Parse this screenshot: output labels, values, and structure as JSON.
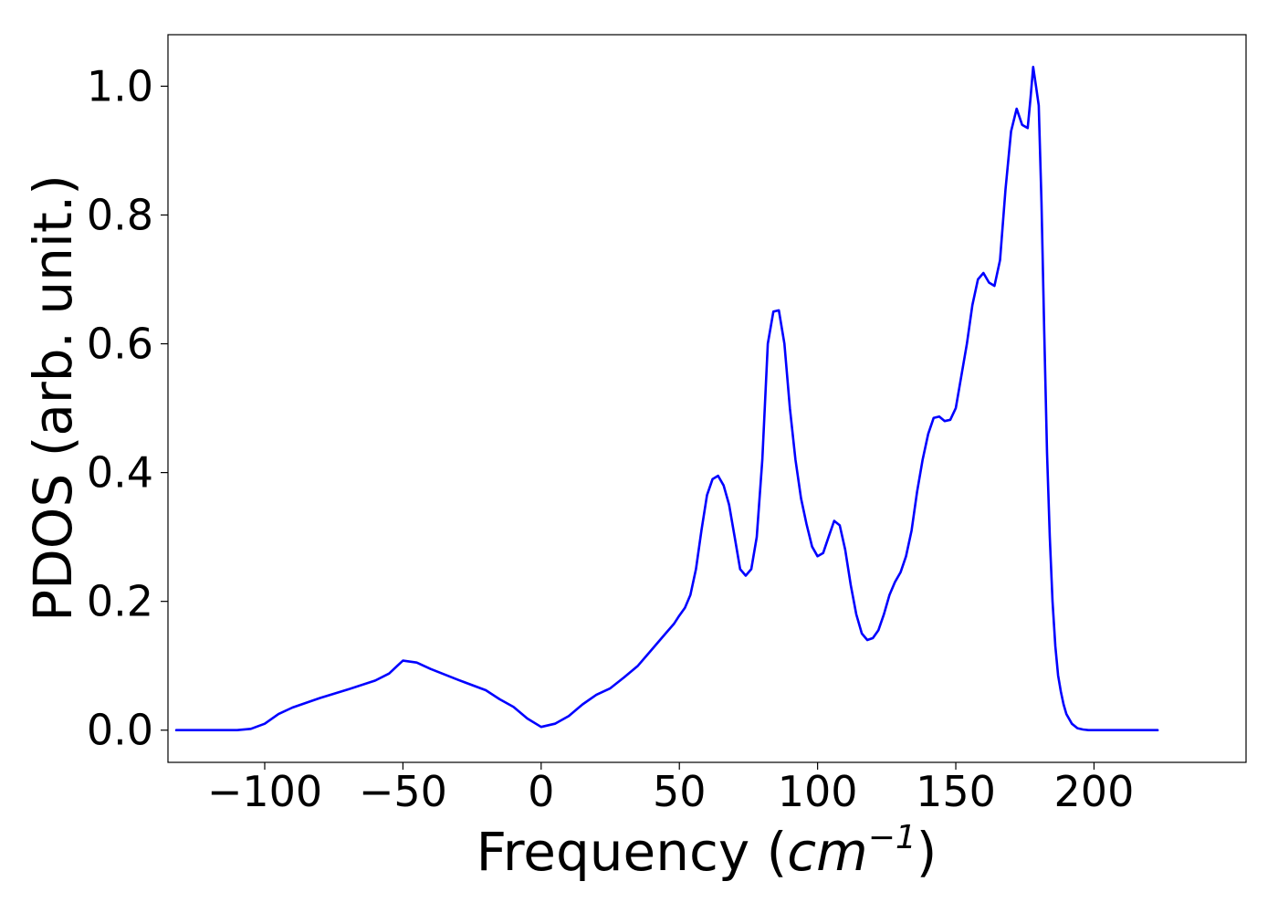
{
  "chart_data": {
    "type": "line",
    "title": "",
    "xlabel": "Frequency",
    "xlabel_unit_base": "cm",
    "xlabel_unit_exp": "−1",
    "ylabel": "PDOS (arb. unit.)",
    "xlim": [
      -135,
      255
    ],
    "ylim": [
      -0.05,
      1.08
    ],
    "xticks": [
      -100,
      -50,
      0,
      50,
      100,
      150,
      200
    ],
    "xtick_labels": [
      "−100",
      "−50",
      "0",
      "50",
      "100",
      "150",
      "200"
    ],
    "yticks": [
      0.0,
      0.2,
      0.4,
      0.6,
      0.8,
      1.0
    ],
    "ytick_labels": [
      "0.0",
      "0.2",
      "0.4",
      "0.6",
      "0.8",
      "1.0"
    ],
    "grid": false,
    "color": "#0000ff",
    "series": [
      {
        "x": [
          -132,
          -120,
          -110,
          -105,
          -100,
          -95,
          -90,
          -80,
          -70,
          -60,
          -55,
          -52,
          -50,
          -45,
          -40,
          -30,
          -20,
          -15,
          -10,
          -5,
          0,
          5,
          10,
          15,
          20,
          25,
          30,
          35,
          40,
          45,
          48,
          50,
          52,
          54,
          56,
          58,
          60,
          62,
          64,
          66,
          68,
          70,
          72,
          74,
          76,
          78,
          80,
          82,
          84,
          86,
          88,
          90,
          92,
          94,
          96,
          98,
          100,
          102,
          104,
          106,
          108,
          110,
          112,
          114,
          116,
          118,
          120,
          122,
          124,
          126,
          128,
          130,
          132,
          134,
          136,
          138,
          140,
          142,
          144,
          146,
          148,
          150,
          152,
          154,
          156,
          158,
          160,
          162,
          164,
          166,
          168,
          170,
          172,
          174,
          176,
          177,
          178,
          179,
          180,
          181,
          182,
          183,
          184,
          185,
          186,
          187,
          188,
          189,
          190,
          192,
          194,
          196,
          198,
          200,
          205,
          210,
          223
        ],
        "y": [
          0.0,
          0.0,
          0.0,
          0.002,
          0.01,
          0.025,
          0.035,
          0.05,
          0.063,
          0.077,
          0.088,
          0.1,
          0.108,
          0.105,
          0.095,
          0.078,
          0.062,
          0.048,
          0.036,
          0.018,
          0.005,
          0.01,
          0.022,
          0.04,
          0.055,
          0.065,
          0.082,
          0.1,
          0.125,
          0.15,
          0.165,
          0.178,
          0.19,
          0.21,
          0.25,
          0.31,
          0.365,
          0.39,
          0.395,
          0.38,
          0.35,
          0.3,
          0.25,
          0.24,
          0.25,
          0.3,
          0.42,
          0.6,
          0.65,
          0.652,
          0.6,
          0.5,
          0.42,
          0.36,
          0.32,
          0.285,
          0.27,
          0.275,
          0.3,
          0.325,
          0.318,
          0.28,
          0.225,
          0.18,
          0.15,
          0.14,
          0.143,
          0.155,
          0.18,
          0.21,
          0.23,
          0.245,
          0.27,
          0.31,
          0.37,
          0.42,
          0.46,
          0.485,
          0.487,
          0.48,
          0.482,
          0.5,
          0.55,
          0.6,
          0.66,
          0.7,
          0.71,
          0.695,
          0.69,
          0.73,
          0.84,
          0.93,
          0.965,
          0.94,
          0.935,
          0.98,
          1.03,
          1.0,
          0.97,
          0.82,
          0.62,
          0.43,
          0.3,
          0.2,
          0.13,
          0.085,
          0.06,
          0.04,
          0.025,
          0.01,
          0.003,
          0.001,
          0.0,
          0.0,
          0.0,
          0.0,
          0.0
        ]
      }
    ]
  }
}
